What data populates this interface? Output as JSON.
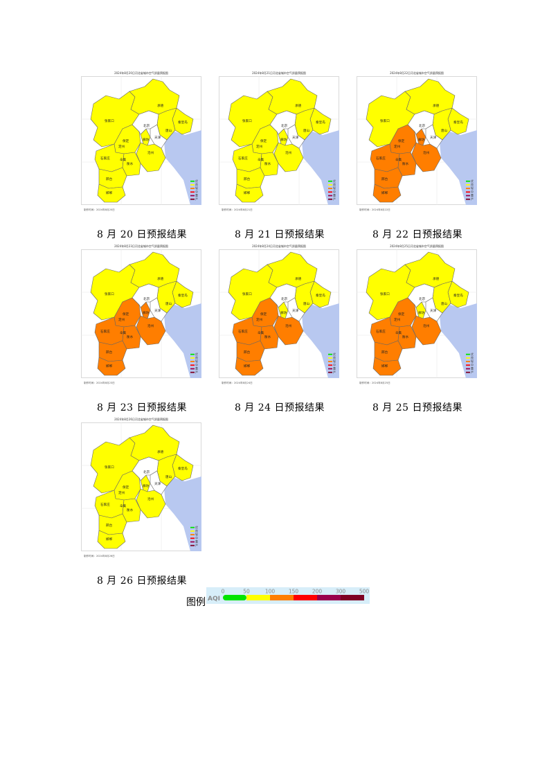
{
  "maps": [
    {
      "title": "2024年8月20日河北省城市空气质量预报图",
      "caption": "8 月 20 日预报结果",
      "footer": "制作时间：2024年8月20日",
      "colors": {
        "nw": "#ffff00",
        "ne": "#ffff00",
        "cw": "#ffff00",
        "ce": "#ffff00",
        "south": "#ffff00",
        "ts": "#ffff00",
        "lf": "#ffff00"
      }
    },
    {
      "title": "2024年8月21日河北省城市空气质量预报图",
      "caption": "8 月 21 日预报结果",
      "footer": "制作时间：2024年8月21日",
      "colors": {
        "nw": "#ffff00",
        "ne": "#ffff00",
        "cw": "#ffff00",
        "ce": "#ffff00",
        "south": "#ffff00",
        "ts": "#ffff00",
        "lf": "#ffff00"
      }
    },
    {
      "title": "2024年8月22日河北省城市空气质量预报图",
      "caption": "8 月 22 日预报结果",
      "footer": "制作时间：2024年8月22日",
      "colors": {
        "nw": "#ffff00",
        "ne": "#ffff00",
        "cw": "#ff7e00",
        "ce": "#ff7e00",
        "south": "#ff7e00",
        "ts": "#ffff00",
        "lf": "#ff7e00"
      }
    },
    {
      "title": "2024年8月23日河北省城市空气质量预报图",
      "caption": "8 月 23 日预报结果",
      "footer": "制作时间：2024年8月23日",
      "colors": {
        "nw": "#ffff00",
        "ne": "#ffff00",
        "cw": "#ff7e00",
        "ce": "#ff7e00",
        "south": "#ff7e00",
        "ts": "#ffff00",
        "lf": "#ff7e00"
      }
    },
    {
      "title": "2024年8月24日河北省城市空气质量预报图",
      "caption": "8 月 24 日预报结果",
      "footer": "制作时间：2024年8月24日",
      "colors": {
        "nw": "#ffff00",
        "ne": "#ffff00",
        "cw": "#ff7e00",
        "ce": "#ff7e00",
        "south": "#ff7e00",
        "ts": "#ffff00",
        "lf": "#ffff00"
      }
    },
    {
      "title": "2024年8月25日河北省城市空气质量预报图",
      "caption": "8 月 25 日预报结果",
      "footer": "制作时间：2024年8月25日",
      "colors": {
        "nw": "#ffff00",
        "ne": "#ffff00",
        "cw": "#ff7e00",
        "ce": "#ff7e00",
        "south": "#ff7e00",
        "ts": "#ffff00",
        "lf": "#ffff00"
      }
    },
    {
      "title": "2024年8月26日河北省城市空气质量预报图",
      "caption": "8 月 26 日预报结果",
      "footer": "制作时间：2024年8月26日",
      "colors": {
        "nw": "#ffff00",
        "ne": "#ffff00",
        "cw": "#ffff00",
        "ce": "#ffff00",
        "south": "#ffff00",
        "ts": "#ffff00",
        "lf": "#ffff00"
      }
    }
  ],
  "city_labels": {
    "zhangjiakou": "张家口",
    "chengde": "承德",
    "beijing": "北京",
    "tianjin": "天津",
    "tangshan": "唐山",
    "qinhuangdao": "秦皇岛",
    "langfang": "廊坊",
    "baoding": "保定",
    "dingzhou": "定州",
    "xinji": "辛集",
    "shijiazhuang": "石家庄",
    "hengshui": "衡水",
    "cangzhou": "沧州",
    "xingtai": "邢台",
    "handan": "邯郸"
  },
  "map_legend": [
    "优",
    "良",
    "轻",
    "中",
    "重",
    "严"
  ],
  "map_legend_colors": [
    "#00e400",
    "#ffff00",
    "#ff7e00",
    "#ff0000",
    "#99004c",
    "#7e0023"
  ],
  "sea_color": "#b8c8f0",
  "legend": {
    "label": "图例",
    "scale_name": "AQI",
    "ticks": [
      "0",
      "50",
      "100",
      "150",
      "200",
      "300",
      "500"
    ],
    "colors": [
      "#00e400",
      "#ffff00",
      "#ff7e00",
      "#ff0000",
      "#99004c",
      "#7e0023"
    ]
  }
}
